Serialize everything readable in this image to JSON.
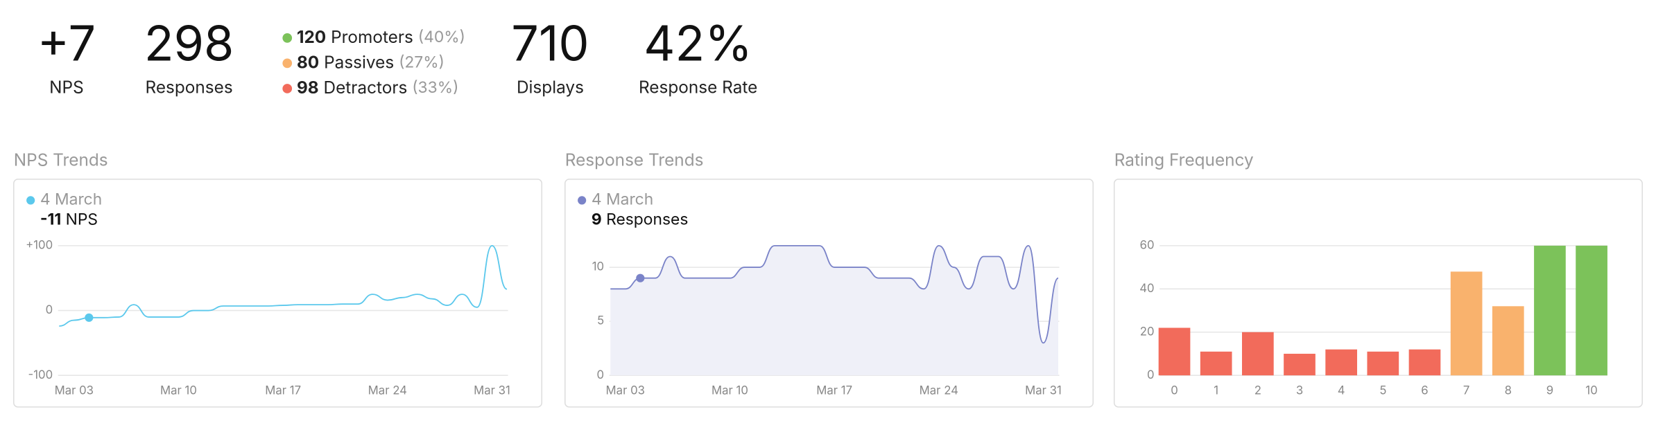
{
  "stats": [
    {
      "value": "+7",
      "label": "NPS"
    },
    {
      "value": "298",
      "label": "Responses"
    },
    {
      "value": "710",
      "label": "Displays"
    },
    {
      "value": "42%",
      "label": "Response Rate"
    }
  ],
  "breakdown": [
    {
      "count": "120",
      "label": "Promoters",
      "pct": "(40%)",
      "color": "#7cc25a"
    },
    {
      "count": "80",
      "label": "Passives",
      "pct": "(27%)",
      "color": "#f9b26d"
    },
    {
      "count": "98",
      "label": "Detractors",
      "pct": "(33%)",
      "color": "#f26b5b"
    }
  ],
  "chart_data": [
    {
      "type": "line",
      "title": "NPS Trends",
      "tooltip": {
        "index": 2,
        "date": "4 March",
        "value": "-11",
        "unit": "NPS"
      },
      "categories": [
        null,
        "Mar 03",
        null,
        null,
        null,
        null,
        null,
        null,
        "Mar 10",
        null,
        null,
        null,
        null,
        null,
        null,
        "Mar 17",
        null,
        null,
        null,
        null,
        null,
        null,
        "Mar 24",
        null,
        null,
        null,
        null,
        null,
        null,
        "Mar 31",
        null
      ],
      "series": [
        {
          "name": "NPS",
          "color": "#5bc8ec",
          "values": [
            -24,
            -15,
            -11,
            -11,
            -10,
            9,
            -10,
            -10,
            -10,
            0,
            0,
            7,
            7,
            7,
            7,
            8,
            9,
            9,
            9,
            10,
            10,
            25,
            16,
            20,
            25,
            18,
            8,
            25,
            5,
            100,
            33
          ]
        }
      ],
      "ylim": [
        -100,
        100
      ],
      "yticks": [
        {
          "value": -100,
          "label": "-100"
        },
        0,
        {
          "value": 100,
          "label": "+100"
        }
      ],
      "grid": true,
      "area": false
    },
    {
      "type": "line",
      "title": "Response Trends",
      "tooltip": {
        "index": 2,
        "date": "4 March",
        "value": "9",
        "unit": "Responses"
      },
      "categories": [
        null,
        "Mar 03",
        null,
        null,
        null,
        null,
        null,
        null,
        "Mar 10",
        null,
        null,
        null,
        null,
        null,
        null,
        "Mar 17",
        null,
        null,
        null,
        null,
        null,
        null,
        "Mar 24",
        null,
        null,
        null,
        null,
        null,
        null,
        "Mar 31",
        null
      ],
      "series": [
        {
          "name": "Responses",
          "color": "#7a83c8",
          "values": [
            8,
            8,
            9,
            9,
            11,
            9,
            9,
            9,
            9,
            10,
            10,
            12,
            12,
            12,
            12,
            10,
            10,
            10,
            9,
            9,
            9,
            8,
            12,
            10,
            8,
            11,
            11,
            8,
            12,
            3,
            9
          ]
        }
      ],
      "ylim": [
        0,
        12
      ],
      "yticks": [
        0,
        5,
        10
      ],
      "grid": true,
      "area": true,
      "area_color": "#eff0f8"
    },
    {
      "type": "bar",
      "title": "Rating Frequency",
      "categories": [
        "0",
        "1",
        "2",
        "3",
        "4",
        "5",
        "6",
        "7",
        "8",
        "9",
        "10"
      ],
      "values": [
        22,
        11,
        20,
        10,
        12,
        11,
        12,
        48,
        32,
        60,
        60
      ],
      "colors": [
        "#f26b5b",
        "#f26b5b",
        "#f26b5b",
        "#f26b5b",
        "#f26b5b",
        "#f26b5b",
        "#f26b5b",
        "#f9b26d",
        "#f9b26d",
        "#7cc25a",
        "#7cc25a"
      ],
      "ylim": [
        0,
        60
      ],
      "yticks": [
        0,
        20,
        40,
        60
      ],
      "grid": true
    }
  ]
}
